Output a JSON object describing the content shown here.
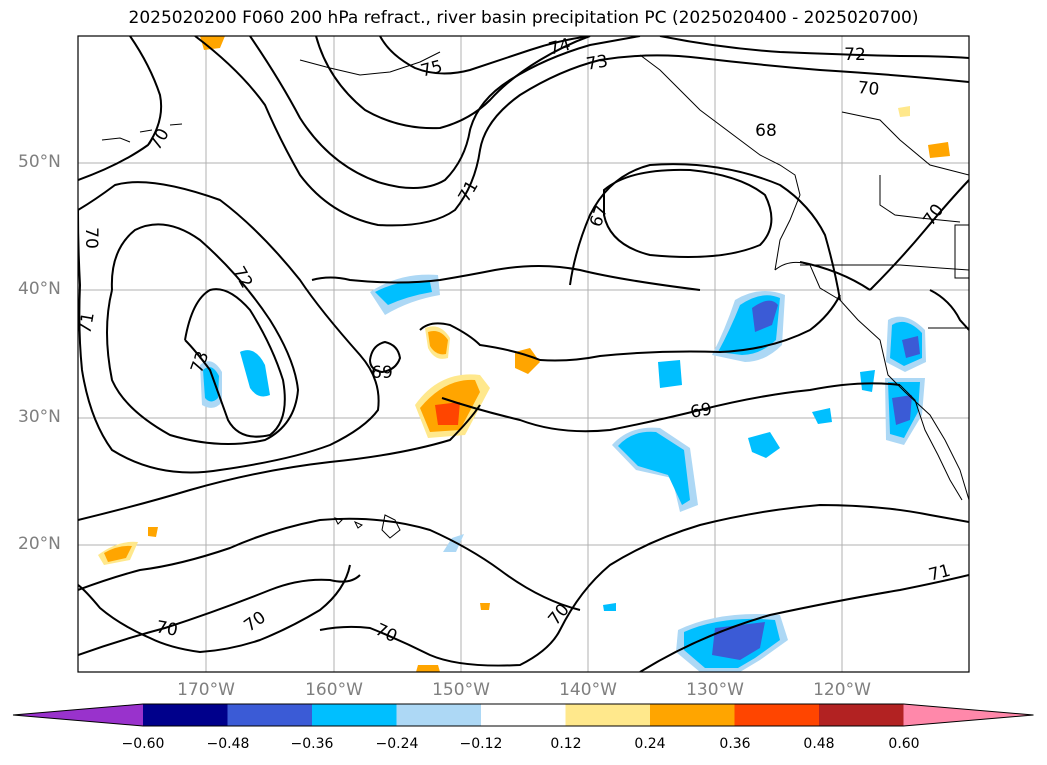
{
  "title": "2025020200 F060 200 hPa refract., river basin precipitation PC (2025020400 - 2025020700)",
  "lat_labels": [
    {
      "text": "50°N",
      "lat": 50
    },
    {
      "text": "40°N",
      "lat": 40
    },
    {
      "text": "30°N",
      "lat": 30
    },
    {
      "text": "20°N",
      "lat": 20
    }
  ],
  "lon_labels": [
    {
      "text": "170°W",
      "lon": -170
    },
    {
      "text": "160°W",
      "lon": -160
    },
    {
      "text": "150°W",
      "lon": -150
    },
    {
      "text": "140°W",
      "lon": -140
    },
    {
      "text": "130°W",
      "lon": -130
    },
    {
      "text": "120°W",
      "lon": -120
    }
  ],
  "colorbar": {
    "ticks": [
      "−0.60",
      "−0.48",
      "−0.36",
      "−0.24",
      "−0.12",
      "0.12",
      "0.24",
      "0.36",
      "0.48",
      "0.60"
    ],
    "colors": [
      "#9932cc",
      "#00008b",
      "#3b5bd6",
      "#00bfff",
      "#add8f5",
      "#ffffff",
      "#ffe88c",
      "#ffa500",
      "#ff4500",
      "#b22222",
      "#ff88aa"
    ]
  },
  "contour_labels": [
    "75",
    "74",
    "73",
    "72",
    "70",
    "68",
    "71",
    "67",
    "70",
    "70",
    "71",
    "72",
    "73",
    "69",
    "69",
    "70",
    "70",
    "70",
    "70",
    "71",
    "70"
  ]
}
